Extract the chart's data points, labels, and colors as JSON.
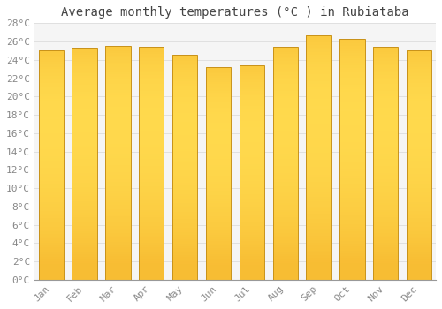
{
  "title": "Average monthly temperatures (°C ) in Rubiataba",
  "months": [
    "Jan",
    "Feb",
    "Mar",
    "Apr",
    "May",
    "Jun",
    "Jul",
    "Aug",
    "Sep",
    "Oct",
    "Nov",
    "Dec"
  ],
  "values": [
    25.0,
    25.3,
    25.5,
    25.4,
    24.6,
    23.2,
    23.4,
    25.4,
    26.7,
    26.3,
    25.4,
    25.0
  ],
  "bar_color_bottom": "#F0A000",
  "bar_color_top": "#FFD84D",
  "bar_edge_color": "#C8921A",
  "ylim": [
    0,
    28
  ],
  "ytick_step": 2,
  "background_color": "#FFFFFF",
  "plot_bg_color": "#F5F5F5",
  "grid_color": "#E0E0E0",
  "title_fontsize": 10,
  "tick_fontsize": 8,
  "tick_color": "#888888",
  "title_color": "#444444"
}
